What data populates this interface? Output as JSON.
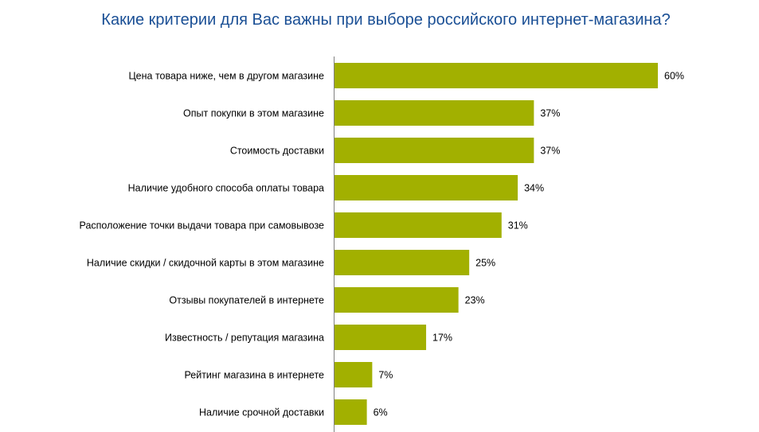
{
  "chart_data": {
    "type": "bar",
    "orientation": "horizontal",
    "title": "Какие критерии  для Вас важны при выборе российского интернет-магазина?",
    "categories": [
      "Цена товара ниже, чем в другом магазине",
      "Опыт покупки в этом магазине",
      "Стоимость доставки",
      "Наличие удобного способа оплаты товара",
      "Расположение точки выдачи товара при самовывозе",
      "Наличие  скидки / скидочной карты в этом магазине",
      "Отзывы покупателей в интернете",
      "Известность / репутация магазина",
      "Рейтинг магазина в интернете",
      "Наличие  срочной доставки"
    ],
    "values": [
      60,
      37,
      37,
      34,
      31,
      25,
      23,
      17,
      7,
      6
    ],
    "value_labels": [
      "60%",
      "37%",
      "37%",
      "34%",
      "31%",
      "25%",
      "23%",
      "17%",
      "7%",
      "6%"
    ],
    "unit": "%",
    "xlim": [
      0,
      60
    ],
    "grid": false,
    "legend": "none",
    "colors": {
      "bar": "#a2b000",
      "title": "#1a4f95",
      "axis": "#808080"
    }
  }
}
